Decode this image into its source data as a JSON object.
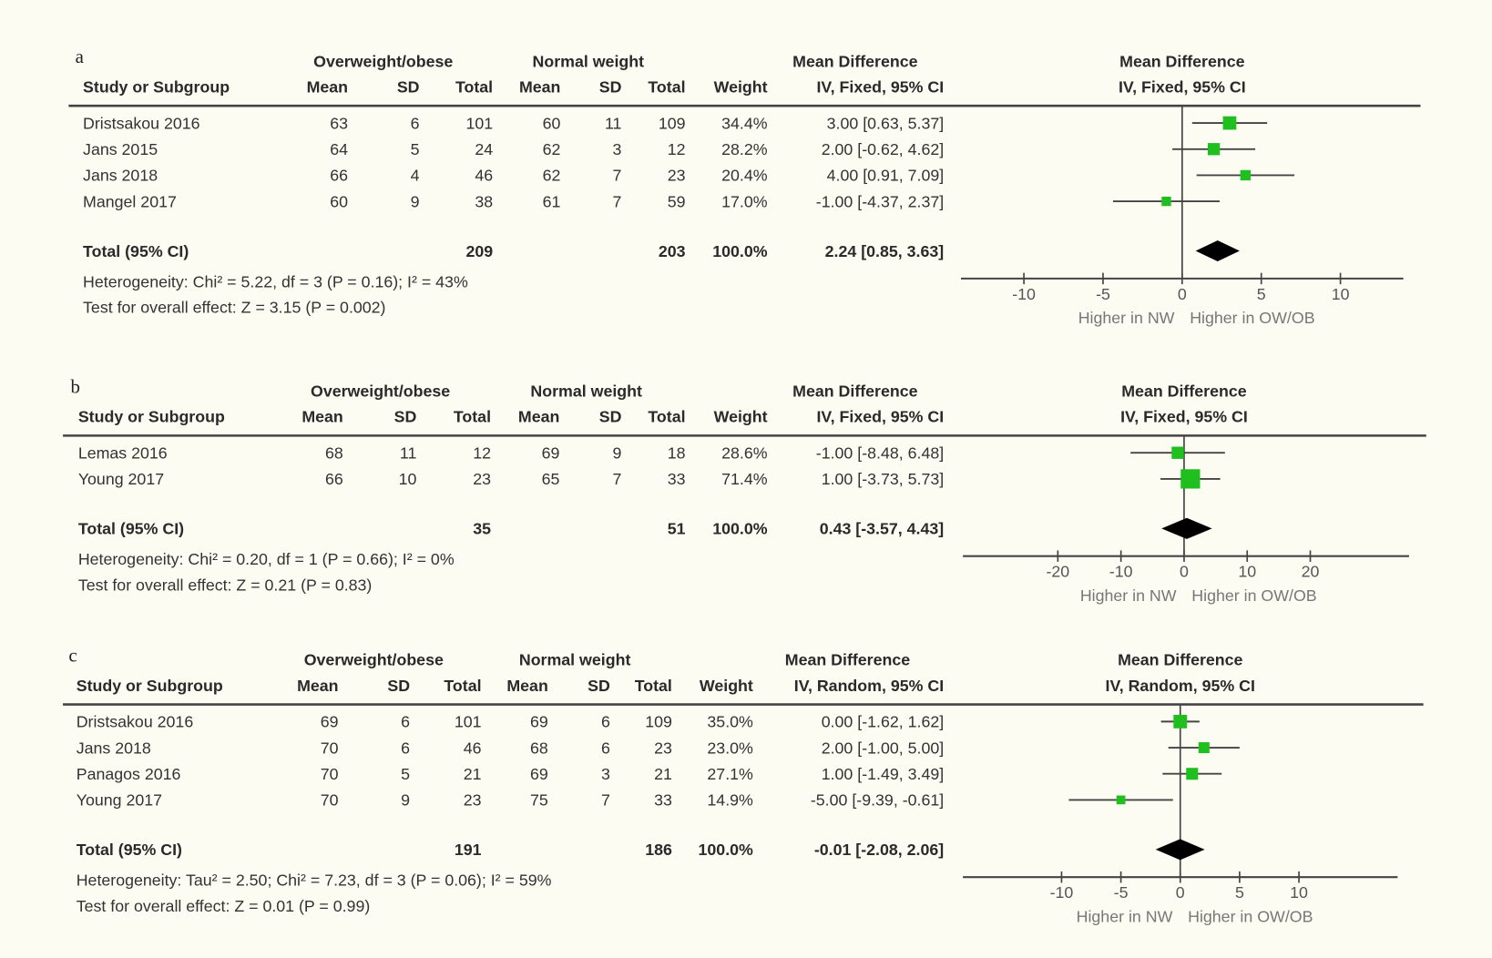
{
  "chart_data": [
    {
      "type": "forest",
      "label": "a",
      "group1": "Overweight/obese",
      "group2": "Normal weight",
      "md_header": "Mean Difference",
      "method": "IV, Fixed, 95% CI",
      "columns": [
        "Study or Subgroup",
        "Mean",
        "SD",
        "Total",
        "Mean",
        "SD",
        "Total",
        "Weight"
      ],
      "studies": [
        {
          "name": "Dristsakou 2016",
          "m1": "63",
          "sd1": "6",
          "n1": "101",
          "m2": "60",
          "sd2": "11",
          "n2": "109",
          "weight": "34.4%",
          "ci": "3.00 [0.63, 5.37]",
          "md": 3.0,
          "lo": 0.63,
          "hi": 5.37,
          "w": 34.4
        },
        {
          "name": "Jans 2015",
          "m1": "64",
          "sd1": "5",
          "n1": "24",
          "m2": "62",
          "sd2": "3",
          "n2": "12",
          "weight": "28.2%",
          "ci": "2.00 [-0.62, 4.62]",
          "md": 2.0,
          "lo": -0.62,
          "hi": 4.62,
          "w": 28.2
        },
        {
          "name": "Jans 2018",
          "m1": "66",
          "sd1": "4",
          "n1": "46",
          "m2": "62",
          "sd2": "7",
          "n2": "23",
          "weight": "20.4%",
          "ci": "4.00 [0.91, 7.09]",
          "md": 4.0,
          "lo": 0.91,
          "hi": 7.09,
          "w": 20.4
        },
        {
          "name": "Mangel 2017",
          "m1": "60",
          "sd1": "9",
          "n1": "38",
          "m2": "61",
          "sd2": "7",
          "n2": "59",
          "weight": "17.0%",
          "ci": "-1.00 [-4.37, 2.37]",
          "md": -1.0,
          "lo": -4.37,
          "hi": 2.37,
          "w": 17.0
        }
      ],
      "total": {
        "label": "Total (95% CI)",
        "n1": "209",
        "n2": "203",
        "weight": "100.0%",
        "ci": "2.24 [0.85, 3.63]",
        "md": 2.24,
        "lo": 0.85,
        "hi": 3.63
      },
      "heterogeneity": "Heterogeneity: Chi² = 5.22, df = 3 (P = 0.16); I² = 43%",
      "overall": "Test for overall effect: Z = 3.15 (P = 0.002)",
      "axis": {
        "ticks": [
          "-10",
          "-5",
          "0",
          "5",
          "10"
        ],
        "min": -14,
        "max": 14,
        "left_label": "Higher in NW",
        "right_label": "Higher in OW/OB"
      }
    },
    {
      "type": "forest",
      "label": "b",
      "group1": "Overweight/obese",
      "group2": "Normal weight",
      "md_header": "Mean Difference",
      "method": "IV, Fixed, 95% CI",
      "columns": [
        "Study or Subgroup",
        "Mean",
        "SD",
        "Total",
        "Mean",
        "SD",
        "Total",
        "Weight"
      ],
      "studies": [
        {
          "name": "Lemas 2016",
          "m1": "68",
          "sd1": "11",
          "n1": "12",
          "m2": "69",
          "sd2": "9",
          "n2": "18",
          "weight": "28.6%",
          "ci": "-1.00 [-8.48, 6.48]",
          "md": -1.0,
          "lo": -8.48,
          "hi": 6.48,
          "w": 28.6
        },
        {
          "name": "Young 2017",
          "m1": "66",
          "sd1": "10",
          "n1": "23",
          "m2": "65",
          "sd2": "7",
          "n2": "33",
          "weight": "71.4%",
          "ci": "1.00 [-3.73, 5.73]",
          "md": 1.0,
          "lo": -3.73,
          "hi": 5.73,
          "w": 71.4
        }
      ],
      "total": {
        "label": "Total (95% CI)",
        "n1": "35",
        "n2": "51",
        "weight": "100.0%",
        "ci": "0.43 [-3.57, 4.43]",
        "md": 0.43,
        "lo": -3.57,
        "hi": 4.43
      },
      "heterogeneity": "Heterogeneity: Chi² = 0.20, df = 1 (P = 0.66); I² = 0%",
      "overall": "Test for overall effect: Z = 0.21 (P = 0.83)",
      "axis": {
        "ticks": [
          "-20",
          "-10",
          "0",
          "10",
          "20"
        ],
        "min": -35,
        "max": 35,
        "left_label": "Higher in NW",
        "right_label": "Higher in OW/OB"
      }
    },
    {
      "type": "forest",
      "label": "c",
      "group1": "Overweight/obese",
      "group2": "Normal weight",
      "md_header": "Mean Difference",
      "method": "IV, Random, 95% CI",
      "columns": [
        "Study or Subgroup",
        "Mean",
        "SD",
        "Total",
        "Mean",
        "SD",
        "Total",
        "Weight"
      ],
      "studies": [
        {
          "name": "Dristsakou 2016",
          "m1": "69",
          "sd1": "6",
          "n1": "101",
          "m2": "69",
          "sd2": "6",
          "n2": "109",
          "weight": "35.0%",
          "ci": "0.00 [-1.62, 1.62]",
          "md": 0.0,
          "lo": -1.62,
          "hi": 1.62,
          "w": 35.0
        },
        {
          "name": "Jans 2018",
          "m1": "70",
          "sd1": "6",
          "n1": "46",
          "m2": "68",
          "sd2": "6",
          "n2": "23",
          "weight": "23.0%",
          "ci": "2.00 [-1.00, 5.00]",
          "md": 2.0,
          "lo": -1.0,
          "hi": 5.0,
          "w": 23.0
        },
        {
          "name": "Panagos 2016",
          "m1": "70",
          "sd1": "5",
          "n1": "21",
          "m2": "69",
          "sd2": "3",
          "n2": "21",
          "weight": "27.1%",
          "ci": "1.00 [-1.49, 3.49]",
          "md": 1.0,
          "lo": -1.49,
          "hi": 3.49,
          "w": 27.1
        },
        {
          "name": "Young 2017",
          "m1": "70",
          "sd1": "9",
          "n1": "23",
          "m2": "75",
          "sd2": "7",
          "n2": "33",
          "weight": "14.9%",
          "ci": "-5.00 [-9.39, -0.61]",
          "md": -5.0,
          "lo": -9.39,
          "hi": -0.61,
          "w": 14.9
        }
      ],
      "total": {
        "label": "Total (95% CI)",
        "n1": "191",
        "n2": "186",
        "weight": "100.0%",
        "ci": "-0.01 [-2.08, 2.06]",
        "md": -0.01,
        "lo": -2.08,
        "hi": 2.06
      },
      "heterogeneity": "Heterogeneity: Tau² = 2.50; Chi² = 7.23, df = 3 (P = 0.06); I² = 59%",
      "overall": "Test for overall effect: Z = 0.01 (P = 0.99)",
      "axis": {
        "ticks": [
          "-10",
          "-5",
          "0",
          "5",
          "10"
        ],
        "min": -18.5,
        "max": 18.5,
        "left_label": "Higher in NW",
        "right_label": "Higher in OW/OB"
      }
    }
  ],
  "colors": {
    "marker": "#1fbf1f",
    "diamond": "#000000",
    "line": "#444444"
  }
}
